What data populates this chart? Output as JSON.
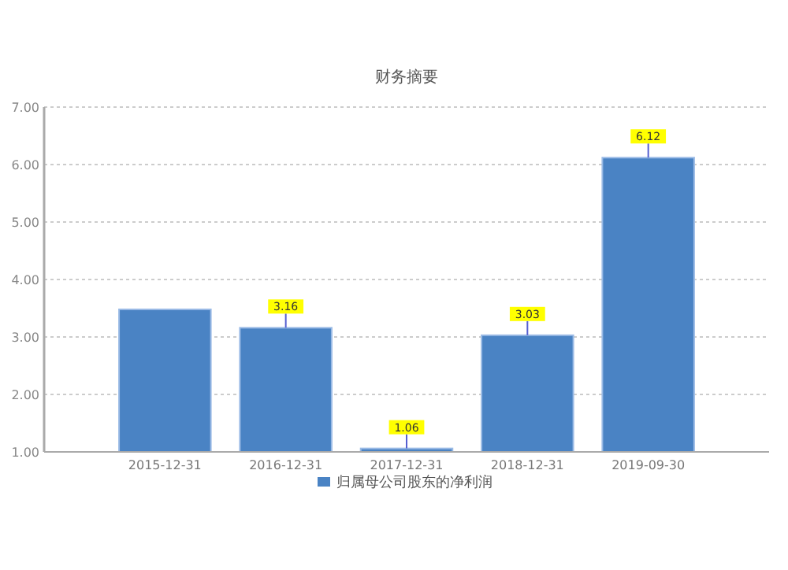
{
  "chart_data": {
    "type": "bar",
    "title": "财务摘要",
    "categories": [
      "2015-12-31",
      "2016-12-31",
      "2017-12-31",
      "2018-12-31",
      "2019-09-30"
    ],
    "series": [
      {
        "name": "归属母公司股东的净利润",
        "color": "#4a83c4",
        "values": [
          3.48,
          3.16,
          1.06,
          3.03,
          6.12
        ],
        "value_labels": [
          null,
          "3.16",
          "1.06",
          "3.03",
          "6.12"
        ]
      }
    ],
    "ylim": [
      1,
      7
    ],
    "yticks": [
      {
        "value": 1,
        "label": "1.00"
      },
      {
        "value": 2,
        "label": "2.00"
      },
      {
        "value": 3,
        "label": "3.00"
      },
      {
        "value": 4,
        "label": "4.00"
      },
      {
        "value": 5,
        "label": "5.00"
      },
      {
        "value": 6,
        "label": "6.00"
      },
      {
        "value": 7,
        "label": "7.00"
      }
    ],
    "grid": "y",
    "legend": "bottom"
  }
}
